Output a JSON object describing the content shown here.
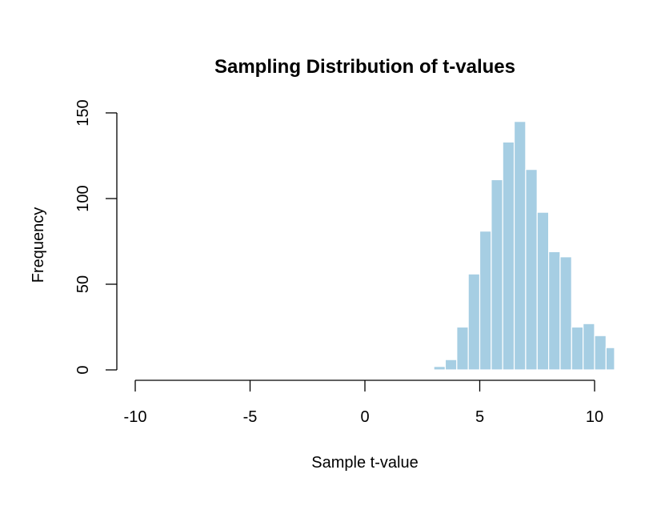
{
  "chart_data": {
    "type": "bar",
    "title": "Sampling Distribution of t-values",
    "xlabel": "Sample t-value",
    "ylabel": "Frequency",
    "xlim": [
      -11,
      10.8
    ],
    "ylim": [
      0,
      150
    ],
    "x_ticks": [
      -10,
      -5,
      0,
      5,
      10
    ],
    "y_ticks": [
      0,
      50,
      100,
      150
    ],
    "x_tick_labels": [
      "-10",
      "-5",
      "0",
      "5",
      "10"
    ],
    "y_tick_labels": [
      "0",
      "50",
      "100",
      "150"
    ],
    "bar_color": "#a6cee3",
    "grid": false,
    "bins": [
      {
        "x0": 3.0,
        "x1": 3.5,
        "count": 2
      },
      {
        "x0": 3.5,
        "x1": 4.0,
        "count": 6
      },
      {
        "x0": 4.0,
        "x1": 4.5,
        "count": 25
      },
      {
        "x0": 4.5,
        "x1": 5.0,
        "count": 56
      },
      {
        "x0": 5.0,
        "x1": 5.5,
        "count": 81
      },
      {
        "x0": 5.5,
        "x1": 6.0,
        "count": 111
      },
      {
        "x0": 6.0,
        "x1": 6.5,
        "count": 133
      },
      {
        "x0": 6.5,
        "x1": 7.0,
        "count": 145
      },
      {
        "x0": 7.0,
        "x1": 7.5,
        "count": 117
      },
      {
        "x0": 7.5,
        "x1": 8.0,
        "count": 92
      },
      {
        "x0": 8.0,
        "x1": 8.5,
        "count": 69
      },
      {
        "x0": 8.5,
        "x1": 9.0,
        "count": 66
      },
      {
        "x0": 9.0,
        "x1": 9.5,
        "count": 25
      },
      {
        "x0": 9.5,
        "x1": 10.0,
        "count": 27
      },
      {
        "x0": 10.0,
        "x1": 10.5,
        "count": 20
      },
      {
        "x0": 10.5,
        "x1": 11.0,
        "count": 13
      }
    ]
  }
}
